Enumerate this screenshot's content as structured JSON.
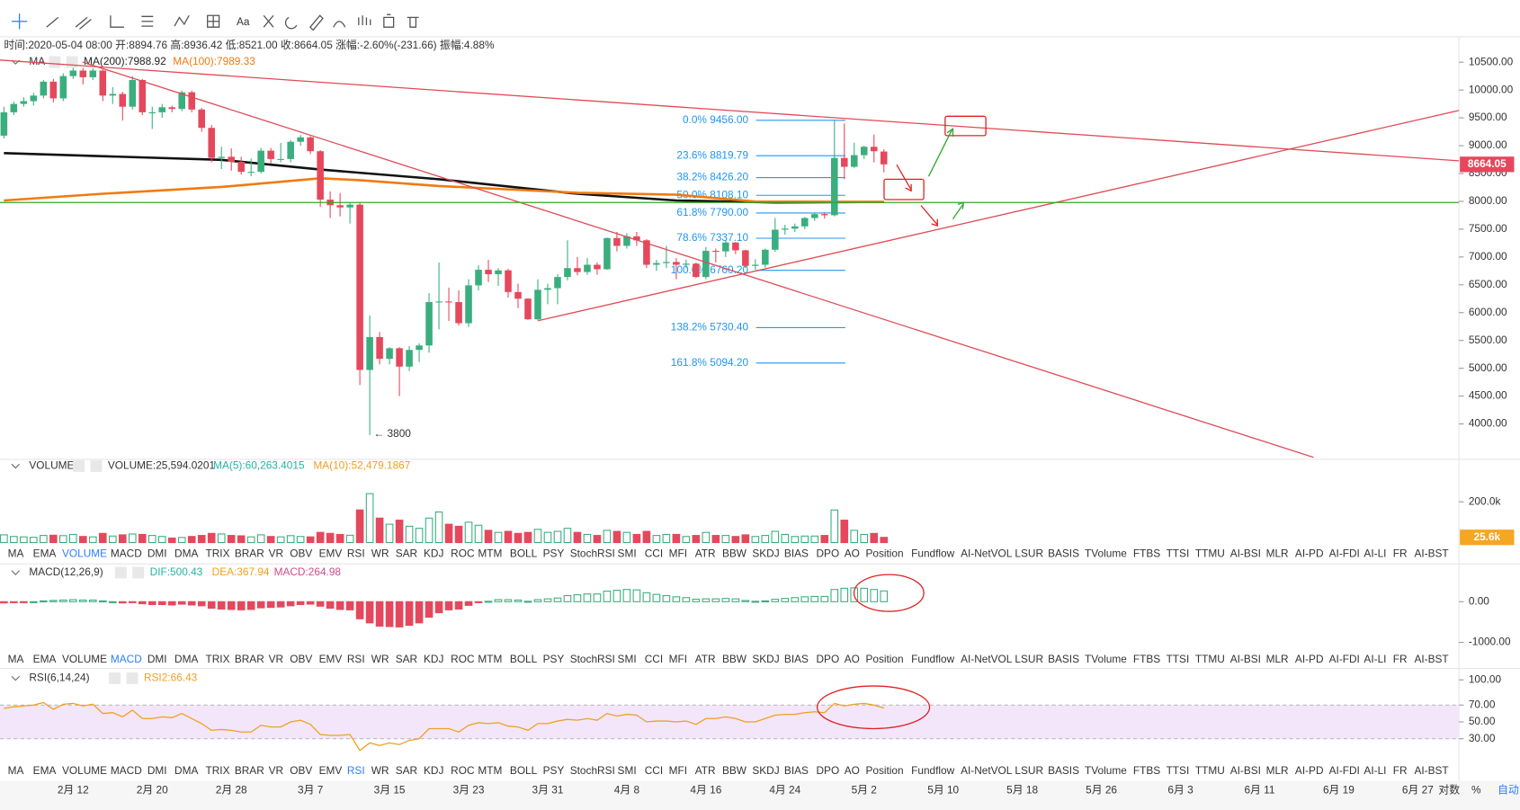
{
  "toolbar": {
    "font_button": "Aa"
  },
  "info": "时间:2020-05-04 08:00 开:8894.76 高:8936.42 低:8521.00 收:8664.05 涨幅:-2.60%(-231.66) 振幅:4.88%",
  "chart_data": {
    "type": "candlestick",
    "up_color": "#3aae7e",
    "down_color": "#e5485d",
    "candles": [
      [
        9180,
        9700,
        9130,
        9600,
        38000,
        -30,
        66
      ],
      [
        9600,
        9790,
        9550,
        9750,
        30000,
        -20,
        68
      ],
      [
        9750,
        9870,
        9700,
        9800,
        28000,
        -10,
        69
      ],
      [
        9800,
        9950,
        9720,
        9900,
        26000,
        0,
        70
      ],
      [
        9900,
        10180,
        9850,
        10150,
        35000,
        20,
        73
      ],
      [
        10150,
        10200,
        9780,
        9850,
        36000,
        30,
        65
      ],
      [
        9850,
        10300,
        9800,
        10250,
        34000,
        40,
        71
      ],
      [
        10250,
        10480,
        10200,
        10350,
        40000,
        50,
        72
      ],
      [
        10350,
        10400,
        10100,
        10230,
        30000,
        40,
        69
      ],
      [
        10230,
        10390,
        10180,
        10350,
        28000,
        40,
        71
      ],
      [
        10350,
        10370,
        9800,
        9900,
        45000,
        20,
        60
      ],
      [
        9900,
        10050,
        9750,
        9930,
        32000,
        0,
        61
      ],
      [
        9930,
        9970,
        9450,
        9700,
        38000,
        -30,
        56
      ],
      [
        9700,
        10250,
        9650,
        10180,
        42000,
        -20,
        64
      ],
      [
        10180,
        10200,
        9550,
        9600,
        40000,
        -50,
        54
      ],
      [
        9600,
        9700,
        9300,
        9600,
        35000,
        -70,
        54
      ],
      [
        9600,
        9750,
        9500,
        9690,
        30000,
        -70,
        56
      ],
      [
        9690,
        9720,
        9600,
        9660,
        22000,
        -80,
        55
      ],
      [
        9660,
        9990,
        9620,
        9960,
        25000,
        -60,
        60
      ],
      [
        9960,
        9990,
        9600,
        9650,
        30000,
        -80,
        54
      ],
      [
        9650,
        9680,
        9250,
        9320,
        35000,
        -100,
        48
      ],
      [
        9320,
        9370,
        8700,
        8780,
        45000,
        -160,
        40
      ],
      [
        8780,
        8980,
        8580,
        8800,
        42000,
        -180,
        41
      ],
      [
        8800,
        8950,
        8550,
        8710,
        35000,
        -190,
        40
      ],
      [
        8710,
        8800,
        8480,
        8530,
        33000,
        -200,
        38
      ],
      [
        8530,
        8770,
        8450,
        8530,
        28000,
        -190,
        38
      ],
      [
        8530,
        8960,
        8500,
        8910,
        38000,
        -150,
        46
      ],
      [
        8910,
        8960,
        8680,
        8760,
        30000,
        -140,
        44
      ],
      [
        8760,
        9050,
        8700,
        8760,
        28000,
        -130,
        44
      ],
      [
        8760,
        9100,
        8700,
        9070,
        34000,
        -100,
        50
      ],
      [
        9070,
        9190,
        9000,
        9150,
        30000,
        -70,
        52
      ],
      [
        9150,
        9170,
        8850,
        8900,
        28000,
        -60,
        47
      ],
      [
        8900,
        8920,
        7900,
        8030,
        50000,
        -110,
        35
      ],
      [
        8030,
        8180,
        7700,
        7930,
        45000,
        -160,
        34
      ],
      [
        7930,
        8150,
        7730,
        7890,
        40000,
        -190,
        34
      ],
      [
        7890,
        7980,
        7600,
        7940,
        36000,
        -200,
        35
      ],
      [
        7940,
        7970,
        4700,
        4970,
        160000,
        -420,
        16
      ],
      [
        4970,
        5950,
        3800,
        5560,
        240000,
        -520,
        25
      ],
      [
        5560,
        5650,
        5070,
        5170,
        120000,
        -600,
        22
      ],
      [
        5170,
        5380,
        5070,
        5360,
        90000,
        -610,
        25
      ],
      [
        5360,
        5380,
        4500,
        5030,
        110000,
        -620,
        23
      ],
      [
        5030,
        5400,
        4950,
        5330,
        80000,
        -580,
        28
      ],
      [
        5330,
        5450,
        5110,
        5410,
        70000,
        -520,
        30
      ],
      [
        5410,
        6350,
        5280,
        6190,
        120000,
        -380,
        42
      ],
      [
        6190,
        6900,
        5700,
        6200,
        150000,
        -270,
        42
      ],
      [
        6200,
        6450,
        5850,
        6190,
        90000,
        -200,
        42
      ],
      [
        6190,
        6400,
        5770,
        5810,
        80000,
        -180,
        38
      ],
      [
        5810,
        6600,
        5740,
        6490,
        100000,
        -90,
        46
      ],
      [
        6490,
        6850,
        6400,
        6770,
        85000,
        -20,
        49
      ],
      [
        6770,
        6950,
        6550,
        6690,
        60000,
        10,
        48
      ],
      [
        6690,
        6800,
        6480,
        6760,
        50000,
        50,
        49
      ],
      [
        6760,
        6790,
        6270,
        6370,
        55000,
        50,
        45
      ],
      [
        6370,
        6520,
        6080,
        6250,
        45000,
        40,
        44
      ],
      [
        6250,
        6260,
        5870,
        5880,
        50000,
        10,
        40
      ],
      [
        5880,
        6600,
        5860,
        6410,
        65000,
        50,
        48
      ],
      [
        6410,
        6520,
        6150,
        6440,
        50000,
        70,
        48
      ],
      [
        6440,
        6690,
        6150,
        6640,
        55000,
        90,
        51
      ],
      [
        6640,
        7300,
        6580,
        6800,
        70000,
        150,
        53
      ],
      [
        6800,
        7000,
        6670,
        6730,
        50000,
        170,
        52
      ],
      [
        6730,
        6980,
        6680,
        6860,
        40000,
        190,
        54
      ],
      [
        6860,
        6900,
        6680,
        6780,
        35000,
        190,
        52
      ],
      [
        6780,
        7350,
        6770,
        7340,
        60000,
        260,
        60
      ],
      [
        7340,
        7450,
        7100,
        7200,
        55000,
        280,
        57
      ],
      [
        7200,
        7430,
        7150,
        7370,
        50000,
        300,
        59
      ],
      [
        7370,
        7450,
        7200,
        7300,
        40000,
        290,
        58
      ],
      [
        7300,
        7320,
        6800,
        6860,
        55000,
        220,
        50
      ],
      [
        6860,
        6950,
        6750,
        6890,
        35000,
        180,
        51
      ],
      [
        6890,
        7200,
        6800,
        6910,
        40000,
        150,
        51
      ],
      [
        6910,
        6980,
        6600,
        6860,
        40000,
        120,
        50
      ],
      [
        6860,
        6950,
        6800,
        6880,
        30000,
        100,
        51
      ],
      [
        6880,
        6900,
        6620,
        6640,
        35000,
        60,
        47
      ],
      [
        6640,
        7180,
        6600,
        7110,
        50000,
        70,
        54
      ],
      [
        7110,
        7150,
        6900,
        7100,
        35000,
        70,
        54
      ],
      [
        7100,
        7300,
        7000,
        7260,
        35000,
        80,
        56
      ],
      [
        7260,
        7270,
        7050,
        7120,
        30000,
        70,
        54
      ],
      [
        7120,
        7130,
        6800,
        6840,
        38000,
        30,
        50
      ],
      [
        6840,
        6960,
        6770,
        6860,
        30000,
        10,
        50
      ],
      [
        6860,
        7150,
        6810,
        7130,
        35000,
        20,
        54
      ],
      [
        7130,
        7700,
        7090,
        7490,
        55000,
        60,
        58
      ],
      [
        7490,
        7580,
        7400,
        7510,
        40000,
        80,
        59
      ],
      [
        7510,
        7600,
        7450,
        7550,
        30000,
        100,
        59
      ],
      [
        7550,
        7720,
        7500,
        7700,
        32000,
        120,
        61
      ],
      [
        7700,
        7800,
        7650,
        7770,
        32000,
        130,
        62
      ],
      [
        7770,
        7800,
        7690,
        7750,
        35000,
        130,
        61
      ],
      [
        7750,
        9450,
        7730,
        8780,
        160000,
        300,
        72
      ],
      [
        8780,
        9400,
        8400,
        8620,
        110000,
        330,
        69
      ],
      [
        8620,
        9050,
        8600,
        8830,
        60000,
        340,
        71
      ],
      [
        8830,
        9000,
        8760,
        8980,
        40000,
        330,
        72
      ],
      [
        8980,
        9200,
        8700,
        8900,
        45000,
        300,
        70
      ],
      [
        8894.76,
        8936.42,
        8521,
        8664.05,
        25594.0201,
        264.98,
        66.43
      ]
    ],
    "price_pane": {
      "name": "MA",
      "legend": [
        {
          "label": "MA(200):7988.92",
          "color": "#222222"
        },
        {
          "label": "MA(100):7989.33",
          "color": "#f07a12"
        }
      ],
      "ma_lines": [
        {
          "color": "#111111",
          "x": [
            0,
            22,
            32,
            44,
            58,
            68,
            78,
            89
          ],
          "values": [
            8866,
            8745,
            8571,
            8397,
            8136,
            8015,
            7980,
            7988.92
          ]
        },
        {
          "color": "#f07a12",
          "x": [
            0,
            10,
            22,
            32,
            36,
            44,
            58,
            68,
            76,
            89
          ],
          "values": [
            8015,
            8136,
            8258,
            8414,
            8380,
            8275,
            8154,
            8119,
            7997,
            7989.33
          ]
        }
      ],
      "ylim": [
        3400,
        10660
      ],
      "yticks": [
        {
          "value": 10500,
          "label": "10500.00"
        },
        {
          "value": 10000,
          "label": "10000.00"
        },
        {
          "value": 9500,
          "label": "9500.00"
        },
        {
          "value": 9000,
          "label": "9000.00"
        },
        {
          "value": 8500,
          "label": "8500.00"
        },
        {
          "value": 8000,
          "label": "8000.00"
        },
        {
          "value": 7500,
          "label": "7500.00"
        },
        {
          "value": 7000,
          "label": "7000.00"
        },
        {
          "value": 6500,
          "label": "6500.00"
        },
        {
          "value": 6000,
          "label": "6000.00"
        },
        {
          "value": 5500,
          "label": "5500.00"
        },
        {
          "value": 5000,
          "label": "5000.00"
        },
        {
          "value": 4500,
          "label": "4500.00"
        },
        {
          "value": 4000,
          "label": "4000.00"
        }
      ],
      "fib": [
        {
          "label": "0.0% 9456.00",
          "value": 9456
        },
        {
          "label": "23.6% 8819.79",
          "value": 8819.79
        },
        {
          "label": "38.2% 8426.20",
          "value": 8426.2
        },
        {
          "label": "50.0% 8108.10",
          "value": 8108.1
        },
        {
          "label": "61.8% 7790.00",
          "value": 7790
        },
        {
          "label": "78.6% 7337.10",
          "value": 7337.1
        },
        {
          "label": "100.0% 6760.20",
          "value": 6760.2
        },
        {
          "label": "138.2% 5730.40",
          "value": 5730.4
        },
        {
          "label": "161.8% 5094.20",
          "value": 5094.2
        }
      ],
      "fib_color": "#2196f3",
      "low_annotation": {
        "label": "← 3800",
        "value": 3800
      }
    },
    "volume_pane": {
      "name": "VOLUME",
      "legend": [
        {
          "label": "VOLUME:25,594.0201",
          "color": "#333333"
        },
        {
          "label": "MA(5):60,263.4015",
          "color": "#26b3a6"
        },
        {
          "label": "MA(10):52,479.1867",
          "color": "#f0a020"
        }
      ],
      "ylim": [
        0,
        380000
      ],
      "yticks": [
        {
          "value": 200000,
          "label": "200.0k"
        }
      ],
      "last_tag": {
        "value": 25594.0201,
        "label": "25.6k"
      },
      "tag_color": "#f5a623"
    },
    "macd_pane": {
      "name": "MACD(12,26,9)",
      "legend": [
        {
          "label": "DIF:500.43",
          "color": "#26b3a6"
        },
        {
          "label": "DEA:367.94",
          "color": "#f0a020"
        },
        {
          "label": "MACD:264.98",
          "color": "#d04a8a"
        }
      ],
      "ylim": [
        -1190,
        905
      ],
      "yticks": [
        {
          "value": 0,
          "label": "0.00"
        },
        {
          "value": -1000,
          "label": "-1000.00"
        }
      ]
    },
    "rsi_pane": {
      "name": "RSI(6,14,24)",
      "legend": [
        {
          "label": "RSI2:66.43",
          "color": "#f0a020"
        }
      ],
      "ylim": [
        4,
        110
      ],
      "yticks": [
        {
          "value": 100,
          "label": "100.00"
        },
        {
          "value": 70,
          "label": "70.00"
        },
        {
          "value": 50,
          "label": "50.00"
        },
        {
          "value": 30,
          "label": "30.00"
        }
      ],
      "band": [
        30,
        70
      ],
      "band_color": "#f3e6fb",
      "line_color": "#f0a020"
    },
    "xticks": [
      "2月 12",
      "2月 20",
      "2月 28",
      "3月 7",
      "3月 15",
      "3月 23",
      "3月 31",
      "4月 8",
      "4月 16",
      "4月 24",
      "5月 2",
      "5月 10",
      "5月 18",
      "5月 26",
      "6月 3",
      "6月 11",
      "6月 19",
      "6月 27"
    ]
  },
  "tabs": [
    "MA",
    "EMA",
    "VOLUME",
    "MACD",
    "DMI",
    "DMA",
    "TRIX",
    "BRAR",
    "VR",
    "OBV",
    "EMV",
    "RSI",
    "WR",
    "SAR",
    "KDJ",
    "ROC",
    "MTM",
    "BOLL",
    "PSY",
    "StochRSI",
    "SMI",
    "CCI",
    "MFI",
    "ATR",
    "BBW",
    "SKDJ",
    "BIAS",
    "DPO",
    "AO",
    "Position",
    "Fundflow",
    "AI-NetVOL",
    "LSUR",
    "BASIS",
    "TVolume",
    "FTBS",
    "TTSI",
    "TTMU",
    "AI-BSI",
    "MLR",
    "AI-PD",
    "AI-FDI",
    "AI-LI",
    "FR",
    "AI-BST"
  ],
  "active_tabs": [
    2,
    3,
    11
  ],
  "scale_buttons": [
    "对数",
    "%",
    "自动"
  ]
}
